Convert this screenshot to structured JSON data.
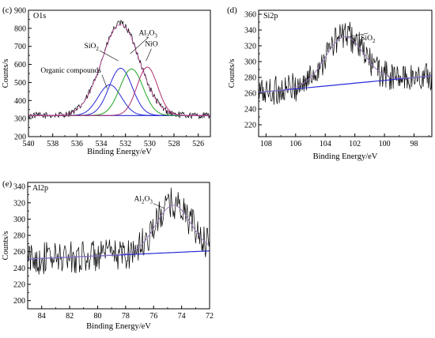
{
  "chart_data": [
    {
      "type": "line",
      "panel_label": "(c)",
      "title": "O1s",
      "xlabel": "Binding Energy/eV",
      "ylabel": "Counts/s",
      "xlim": [
        540,
        525
      ],
      "ylim": [
        200,
        900
      ],
      "xticks": [
        540,
        538,
        536,
        534,
        532,
        530,
        528,
        526
      ],
      "yticks": [
        200,
        300,
        400,
        500,
        600,
        700,
        800,
        900
      ],
      "grid": false,
      "background": 317,
      "raw": {
        "center": 532.4,
        "amp": 510,
        "sigma": 1.55,
        "noise": 18,
        "colors": [
          "#000000"
        ]
      },
      "series": [
        {
          "center": 533.3,
          "amp": 170,
          "sigma": 0.95,
          "color": "#2a2ad8"
        },
        {
          "center": 532.4,
          "amp": 262,
          "sigma": 0.95,
          "color": "#2a2ad8"
        },
        {
          "center": 531.5,
          "amp": 258,
          "sigma": 0.95,
          "color": "#22a322"
        },
        {
          "center": 530.2,
          "amp": 268,
          "sigma": 0.85,
          "color": "#b03070"
        },
        {
          "center": 532.4,
          "amp": 505,
          "sigma": 1.55,
          "color": "#e63db6",
          "dashed": true
        }
      ],
      "annotations": [
        {
          "text": "Organic compounds",
          "x": 539.0,
          "y": 555,
          "ax": 533.5,
          "ay": 465
        },
        {
          "text": "SiO",
          "sub": "2",
          "x": 535.4,
          "y": 690,
          "ax": 532.6,
          "ay": 620
        },
        {
          "text": "Al",
          "sub": "2",
          "text2": "O",
          "sub2": "3",
          "x": 530.9,
          "y": 762,
          "ax": 531.6,
          "ay": 660
        },
        {
          "text": "NiO",
          "x": 530.4,
          "y": 700,
          "ax": 530.3,
          "ay": 620
        }
      ]
    },
    {
      "type": "line",
      "panel_label": "(d)",
      "title": "Si2p",
      "xlabel": "Binding Energy/eV",
      "ylabel": "Counts/s",
      "xlim": [
        108.5,
        96.8
      ],
      "ylim": [
        205,
        365
      ],
      "xticks": [
        108,
        106,
        104,
        102,
        100,
        98
      ],
      "yticks": [
        220,
        240,
        260,
        280,
        300,
        320,
        340,
        360
      ],
      "grid": false,
      "background_line": [
        [
          108.5,
          261
        ],
        [
          96.8,
          282
        ]
      ],
      "raw": {
        "center": 102.7,
        "amp": 62,
        "sigma": 1.3,
        "noise": 19
      },
      "series": [
        {
          "center": 102.7,
          "amp": 60,
          "sigma": 1.3,
          "color": "#9b7fbf"
        }
      ],
      "annotations": [
        {
          "text": "SiO",
          "sub": "2",
          "x": 101.6,
          "y": 327,
          "ax": 102.5,
          "ay": 331
        }
      ]
    },
    {
      "type": "line",
      "panel_label": "(e)",
      "title": "Al2p",
      "xlabel": "Binding Energy/eV",
      "ylabel": "Counts/s",
      "xlim": [
        85,
        72
      ],
      "ylim": [
        190,
        345
      ],
      "xticks": [
        84,
        82,
        80,
        78,
        76,
        74,
        72
      ],
      "yticks": [
        200,
        220,
        240,
        260,
        280,
        300,
        320,
        340
      ],
      "grid": false,
      "background_line": [
        [
          85,
          251
        ],
        [
          72,
          261
        ]
      ],
      "raw": {
        "center": 74.6,
        "amp": 60,
        "sigma": 1.25,
        "noise": 20
      },
      "series": [
        {
          "center": 74.6,
          "amp": 58,
          "sigma": 1.25,
          "color": "#9b7fbf"
        }
      ],
      "annotations": [
        {
          "text": "Al",
          "sub": "2",
          "text2": "O",
          "sub2": "3",
          "x": 77.4,
          "y": 322,
          "ax": 75.2,
          "ay": 313
        }
      ]
    }
  ]
}
